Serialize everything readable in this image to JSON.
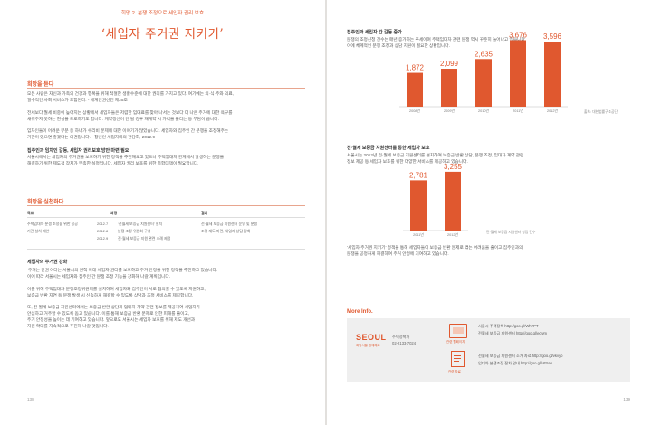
{
  "left": {
    "subtitle": "희망 2. 분쟁 조정으로 세입자 권리 보호",
    "title": "‘세입자 주거권 지키기’",
    "section1": {
      "heading": "희망을 듣다",
      "lines": [
        "모든 사람은 자신과 가족의 건강과 행복을 위해 적절한 생활수준에 대한 권리를 가지고 있다. 여기에는 의·식·주와 의료,",
        "필수적인 사회 서비스가 포함된다. - 세계인권선언 제25조",
        "",
        "전세보다 월세 비중이 높아지는 상황에서 세입자들은 저렴한 임대료를 찾아 나서는 것보다 더 나은 주거에 대한 욕구를",
        "채워주지 못하는 현실을 토로하기도 합니다. 계약갱신이 안 될 경우 재계약 시 가격을 올리는 등 부담이 큽니다.",
        "",
        "임차인들이 어려운 부분 중 하나가 수리비 문제에 대한 이야기가 많았습니다. 세입자와 집주인 간 분쟁을 조정해주는",
        "기관이 있으면 좋겠다는 의견입니다. - 청년인 세입자와의 간담회, 2012.9"
      ]
    },
    "section2": {
      "heading": "집주인과 임차인 갈등, 세입자 권리보호 방안 마련 필요",
      "lines": [
        "서울시에서는 세입자의 주거권을 보호하기 위한 정책을 추진해오고 있으나 주택임대차 관계에서 발생하는 분쟁을",
        "해결하기 위한 제도적 장치가 부족한 실정입니다. 세입자 권리 보호를 위한 종합대책이 필요합니다."
      ]
    },
    "section3": {
      "heading": "희망을 실천하다",
      "columns": [
        "목표",
        "과정",
        "결과"
      ],
      "rows": [
        [
          "주택임대차 분쟁 조정을 위한 공공",
          "2012.7",
          "‘전월세 보증금 지원센터’ 설치",
          "전·월세 보증금 지원센터 운영 및 분쟁"
        ],
        [
          "기관 설치 제안",
          "2012.8",
          "분쟁 조정 위원회 구성",
          "조정 제도 마련, 세입자 상담 강화"
        ],
        [
          "",
          "2012.9",
          "전·월세 보증금 지원 관련 조례 제정",
          ""
        ]
      ]
    },
    "section4": {
      "heading": "세입자의 주거권 강화",
      "lines": [
        "‘주거는 인권’이라는 서울시의 원칙 아래 세입자 권리를 보호하고 주거 안정을 위한 정책을 추진하고 있습니다.",
        "이에 따라 서울시는 세입자와 집주인 간 분쟁 조정 기능을 강화해 나갈 계획입니다.",
        "",
        "이를 위해 주택임대차 분쟁조정위원회를 설치하여 세입자와 집주인이 서로 협의할 수 있도록 지원하고,",
        "보증금 반환 지연 등 분쟁 발생 시 신속하게 해결할 수 있도록 상담과 조정 서비스를 제공합니다.",
        "",
        "또, 전·월세 보증금 지원센터에서는 보증금 반환 상담과 임대차 계약 관련 정보를 제공하여 세입자가",
        "안심하고 거주할 수 있도록 돕고 있습니다. 이를 통해 보증금 반환 문제로 인한 피해를 줄이고,",
        "주거 안정성을 높이는 데 기여하고 있습니다. 앞으로도 서울시는 세입자 보호를 위해 제도 개선과",
        "지원 확대를 지속적으로 추진해 나갈 것입니다."
      ]
    },
    "page_number": "138"
  },
  "right": {
    "chart1": {
      "heading": "집주인과 세입자 간 갈등 증가",
      "lines": [
        "분쟁의 조정신청 건수는 매년 증가하는 추세이며 주택임대차 관련 분쟁 역시 꾸준히 늘어나고 있습니다.",
        "이에 체계적인 분쟁 조정과 상담 지원이 필요한 상황입니다."
      ],
      "note": "출처: 대한법률구조공단"
    },
    "chart2": {
      "heading": "전·월세 보증금 지원센터를 통한 세입자 보호",
      "lines": [
        "서울시는 2012년 전·월세 보증금 지원센터를 설치하여 보증금 반환 상담, 분쟁 조정, 임대차 계약 관련",
        "정보 제공 등 세입자 보호를 위한 다양한 서비스를 제공하고 있습니다."
      ],
      "note": "전·월세 보증금 지원센터 상담 건수"
    },
    "quote": [
      "‘세입자 주거권 지키기’ 정책을 통해 세입자들이 보증금 반환 문제로 겪는 어려움을 줄이고 집주인과의",
      "분쟁을 공정하게 해결하여 주거 안정에 기여하고 있습니다."
    ],
    "more_info": {
      "heading": "More Info.",
      "logo": "SEOUL",
      "tagline": "희망서울 함께해요",
      "dept": "주택정책과",
      "phone": "02-2133-7024",
      "item1_label": "관련 웹페이지",
      "item1_lines": [
        "서울시 주택정책   http://goo.gl/WhTPT",
        "전월세 보증금 지원센터   http://goo.gl/ecwm"
      ],
      "item2_label": "관련 자료",
      "item2_lines": [
        "전월세 보증금 지원센터 소개 자료   http://goo.gl/vkvyb",
        "임대차 분쟁조정 절차 안내   http://goo.gl/uE5an"
      ]
    },
    "page_number": "139"
  },
  "chart_data": [
    {
      "type": "bar",
      "categories": [
        "2008년",
        "2009년",
        "2010년",
        "2011년",
        "2012년"
      ],
      "values": [
        1872,
        2099,
        2635,
        3676,
        3596
      ],
      "ylim": [
        0,
        4000
      ]
    },
    {
      "type": "bar",
      "categories": [
        "2011년",
        "2012년"
      ],
      "values": [
        2781,
        3255
      ],
      "ylim": [
        0,
        4000
      ]
    }
  ],
  "colors": {
    "accent": "#e0582f",
    "bar": "#e0582f"
  }
}
